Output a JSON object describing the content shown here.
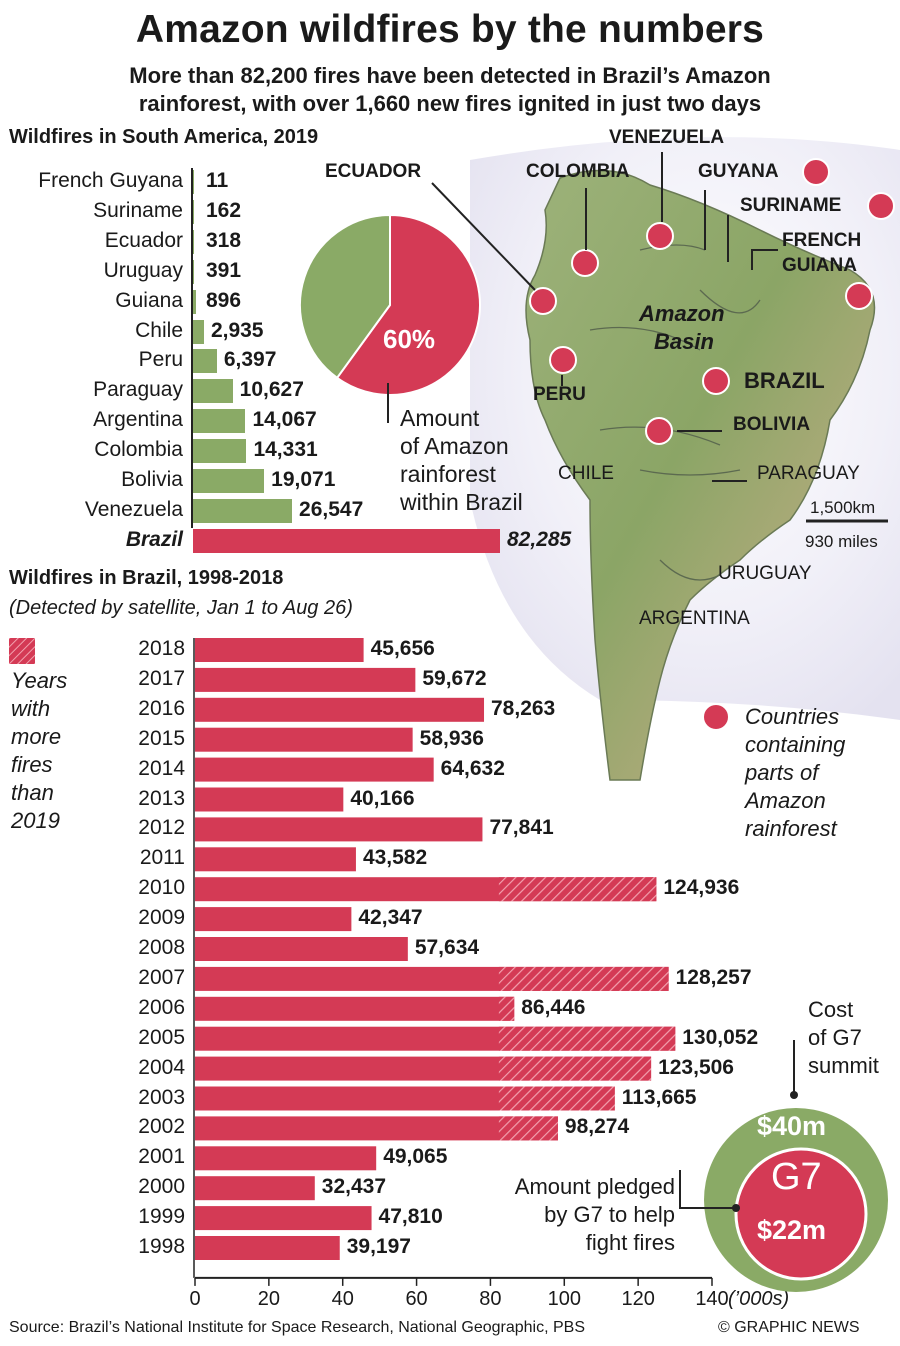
{
  "title": "Amazon wildfires by the numbers",
  "subtitle_line1": "More than 82,200 fires have been detected in Brazil’s Amazon",
  "subtitle_line2": "rainforest, with over 1,660 new fires ignited in just two days",
  "colors": {
    "red": "#d43a55",
    "green": "#8aaa66",
    "darkline": "#222222"
  },
  "chart_data": [
    {
      "type": "bar",
      "orientation": "horizontal",
      "title": "Wildfires in South America, 2019",
      "categories": [
        "French Guyana",
        "Suriname",
        "Ecuador",
        "Uruguay",
        "Guiana",
        "Chile",
        "Peru",
        "Paraguay",
        "Argentina",
        "Colombia",
        "Bolivia",
        "Venezuela",
        "Brazil"
      ],
      "value_labels": [
        "11",
        "162",
        "318",
        "391",
        "896",
        "2,935",
        "6,397",
        "10,627",
        "14,067",
        "14,331",
        "19,071",
        "26,547",
        "82,285"
      ],
      "values": [
        11,
        162,
        318,
        391,
        896,
        2935,
        6397,
        10627,
        14067,
        14331,
        19071,
        26547,
        82285
      ],
      "highlight": "Brazil"
    },
    {
      "type": "pie",
      "value_label": "60%",
      "slices": [
        60,
        40
      ],
      "annotation": [
        "Amount",
        "of Amazon",
        "rainforest",
        "within Brazil"
      ]
    },
    {
      "type": "bar",
      "orientation": "horizontal",
      "title": "Wildfires in Brazil, 1998-2018",
      "note": "(Detected by satellite, Jan 1 to Aug 26)",
      "categories": [
        "2018",
        "2017",
        "2016",
        "2015",
        "2014",
        "2013",
        "2012",
        "2011",
        "2010",
        "2009",
        "2008",
        "2007",
        "2006",
        "2005",
        "2004",
        "2003",
        "2002",
        "2001",
        "2000",
        "1999",
        "1998"
      ],
      "value_labels": [
        "45,656",
        "59,672",
        "78,263",
        "58,936",
        "64,632",
        "40,166",
        "77,841",
        "43,582",
        "124,936",
        "42,347",
        "57,634",
        "128,257",
        "86,446",
        "130,052",
        "123,506",
        "113,665",
        "98,274",
        "49,065",
        "32,437",
        "47,810",
        "39,197"
      ],
      "values": [
        45656,
        59672,
        78263,
        58936,
        64632,
        40166,
        77841,
        43582,
        124936,
        42347,
        57634,
        128257,
        86446,
        130052,
        123506,
        113665,
        98274,
        49065,
        32437,
        47810,
        39197
      ],
      "hatch_above": 82285,
      "xticks": [
        "0",
        "20",
        "40",
        "60",
        "80",
        "100",
        "120",
        "140"
      ],
      "xunit": "(’000s)",
      "xlim": [
        0,
        140
      ],
      "legend": [
        "Years",
        "with",
        "more",
        "fires",
        "than",
        "2019"
      ]
    }
  ],
  "map": {
    "countries_bold": [
      "VENEZUELA",
      "ECUADOR",
      "COLOMBIA",
      "GUYANA",
      "SURINAME",
      "FRENCH",
      "GUIANA",
      "PERU",
      "BRAZIL",
      "BOLIVIA"
    ],
    "countries_plain": [
      "CHILE",
      "PARAGUAY",
      "URUGUAY",
      "ARGENTINA"
    ],
    "basin": [
      "Amazon",
      "Basin"
    ],
    "scale_km": "1,500km",
    "scale_mi": "930 miles",
    "legend": [
      "Countries",
      "containing",
      "parts of",
      "Amazon",
      "rainforest"
    ]
  },
  "g7": {
    "cost_label": [
      "Cost",
      "of G7",
      "summit"
    ],
    "cost_value": "$40m",
    "logo": "G7",
    "pledge_value": "$22m",
    "pledge_label": [
      "Amount pledged",
      "by G7 to help",
      "fight fires"
    ]
  },
  "source": "Source: Brazil’s National Institute for Space Research, National Geographic, PBS",
  "credit": "© GRAPHIC NEWS"
}
